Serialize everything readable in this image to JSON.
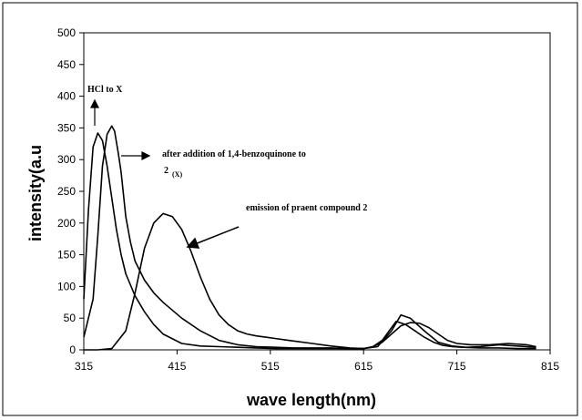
{
  "chart_data": {
    "type": "line",
    "title": "",
    "xlabel": "wave length(nm)",
    "ylabel": "intensity(a.u",
    "xlim": [
      315,
      815
    ],
    "ylim": [
      0,
      500
    ],
    "x_ticks": [
      "315",
      "415",
      "515",
      "615",
      "715",
      "815"
    ],
    "y_ticks": [
      "0",
      "50",
      "100",
      "150",
      "200",
      "250",
      "300",
      "350",
      "400",
      "450",
      "500"
    ],
    "grid": false,
    "legend": "none",
    "series": [
      {
        "x": [
          315,
          320,
          325,
          330,
          335,
          340,
          345,
          350,
          355,
          360,
          370,
          380,
          390,
          400,
          420,
          440,
          460,
          480,
          500,
          520,
          540,
          560,
          580,
          600,
          615,
          625,
          635,
          645,
          650,
          660,
          670,
          680,
          690,
          700,
          710,
          720,
          740,
          760,
          780,
          800
        ],
        "y": [
          80,
          220,
          320,
          342,
          330,
          290,
          240,
          190,
          150,
          120,
          85,
          60,
          40,
          25,
          10,
          6,
          5,
          4,
          3,
          2,
          2,
          2,
          2,
          2,
          2,
          5,
          15,
          35,
          45,
          40,
          30,
          20,
          12,
          7,
          5,
          4,
          3,
          3,
          2,
          2
        ]
      },
      {
        "x": [
          315,
          325,
          330,
          335,
          340,
          345,
          348,
          352,
          355,
          360,
          365,
          370,
          380,
          390,
          400,
          420,
          440,
          460,
          480,
          500,
          520,
          540,
          560,
          580,
          600,
          615,
          630,
          645,
          655,
          665,
          680,
          695,
          710,
          725,
          740,
          760,
          780,
          800
        ],
        "y": [
          20,
          80,
          180,
          290,
          340,
          353,
          345,
          310,
          280,
          210,
          170,
          140,
          110,
          90,
          75,
          50,
          30,
          15,
          8,
          5,
          4,
          3,
          3,
          3,
          2,
          2,
          5,
          30,
          55,
          50,
          30,
          12,
          6,
          4,
          5,
          8,
          6,
          4
        ]
      },
      {
        "x": [
          315,
          330,
          345,
          360,
          370,
          380,
          390,
          400,
          410,
          420,
          430,
          440,
          450,
          460,
          470,
          480,
          490,
          500,
          510,
          520,
          530,
          540,
          560,
          580,
          600,
          615,
          625,
          635,
          645,
          655,
          665,
          675,
          685,
          695,
          705,
          715,
          730,
          750,
          770,
          790,
          800
        ],
        "y": [
          0,
          0,
          2,
          30,
          90,
          160,
          200,
          215,
          210,
          190,
          155,
          115,
          80,
          55,
          40,
          30,
          25,
          22,
          20,
          18,
          16,
          14,
          10,
          6,
          3,
          2,
          5,
          12,
          25,
          38,
          43,
          42,
          35,
          25,
          15,
          10,
          8,
          8,
          10,
          8,
          5
        ]
      }
    ],
    "annotations": [
      {
        "text": "HCl to X"
      },
      {
        "text": "after addition of 1,4-benzoquinone to"
      },
      {
        "text": "2"
      },
      {
        "text": "(X)"
      },
      {
        "text": "emission of praent compound 2"
      }
    ]
  }
}
